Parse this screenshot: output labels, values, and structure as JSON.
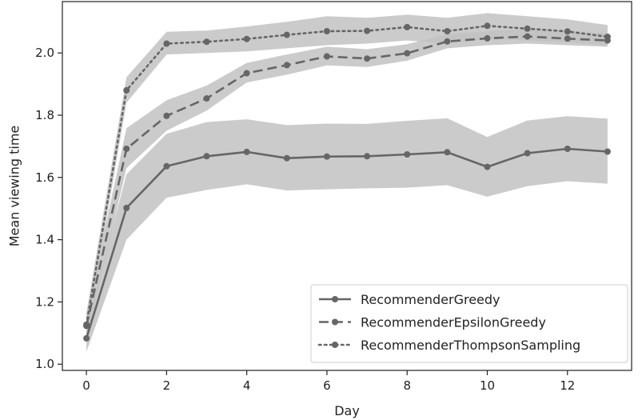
{
  "chart_data": {
    "type": "line",
    "title": "",
    "xlabel": "Day",
    "ylabel": "Mean viewing time",
    "xlim": [
      -0.6,
      13.6
    ],
    "ylim": [
      0.98,
      2.165
    ],
    "xticks": [
      0,
      2,
      4,
      6,
      8,
      10,
      12
    ],
    "yticks": [
      1.0,
      1.2,
      1.4,
      1.6,
      1.8,
      2.0
    ],
    "ytick_labels": [
      "1.0",
      "1.2",
      "1.4",
      "1.6",
      "1.8",
      "2.0"
    ],
    "grid": false,
    "legend_position": "bottom-right",
    "colors": {
      "line": "#666666",
      "band": "#c2c2c2",
      "axis": "#222222"
    },
    "series": [
      {
        "name": "RecommenderGreedy",
        "linestyle": "solid",
        "x": [
          0,
          1,
          2,
          3,
          4,
          5,
          6,
          7,
          8,
          9,
          10,
          11,
          12,
          13
        ],
        "y": [
          1.083,
          1.502,
          1.636,
          1.668,
          1.682,
          1.662,
          1.667,
          1.668,
          1.674,
          1.681,
          1.634,
          1.678,
          1.692,
          1.683
        ],
        "lower": [
          1.04,
          1.4,
          1.535,
          1.56,
          1.578,
          1.558,
          1.562,
          1.565,
          1.567,
          1.575,
          1.538,
          1.572,
          1.588,
          1.58
        ],
        "upper": [
          1.12,
          1.61,
          1.74,
          1.778,
          1.787,
          1.768,
          1.773,
          1.772,
          1.782,
          1.79,
          1.73,
          1.783,
          1.797,
          1.789
        ]
      },
      {
        "name": "RecommenderEpsilonGreedy",
        "linestyle": "dashed",
        "x": [
          0,
          1,
          2,
          3,
          4,
          5,
          6,
          7,
          8,
          9,
          10,
          11,
          12,
          13
        ],
        "y": [
          1.123,
          1.692,
          1.798,
          1.854,
          1.935,
          1.961,
          1.989,
          1.982,
          1.999,
          2.037,
          2.047,
          2.053,
          2.046,
          2.04
        ],
        "lower": [
          1.08,
          1.63,
          1.75,
          1.815,
          1.905,
          1.93,
          1.96,
          1.955,
          1.975,
          2.015,
          2.025,
          2.03,
          2.025,
          2.02
        ],
        "upper": [
          1.16,
          1.758,
          1.848,
          1.895,
          1.968,
          1.995,
          2.02,
          2.012,
          2.028,
          2.06,
          2.07,
          2.078,
          2.07,
          2.063
        ]
      },
      {
        "name": "RecommenderThompsonSampling",
        "linestyle": "dotted",
        "x": [
          0,
          1,
          2,
          3,
          4,
          5,
          6,
          7,
          8,
          9,
          10,
          11,
          12,
          13
        ],
        "y": [
          1.127,
          1.88,
          2.03,
          2.036,
          2.045,
          2.058,
          2.07,
          2.071,
          2.083,
          2.07,
          2.087,
          2.078,
          2.069,
          2.052
        ],
        "lower": [
          1.09,
          1.84,
          1.995,
          2.0,
          2.005,
          2.015,
          2.025,
          2.03,
          2.04,
          2.03,
          2.045,
          2.04,
          2.035,
          2.025
        ],
        "upper": [
          1.165,
          1.922,
          2.068,
          2.072,
          2.085,
          2.1,
          2.118,
          2.113,
          2.123,
          2.113,
          2.128,
          2.118,
          2.108,
          2.09
        ]
      }
    ]
  }
}
